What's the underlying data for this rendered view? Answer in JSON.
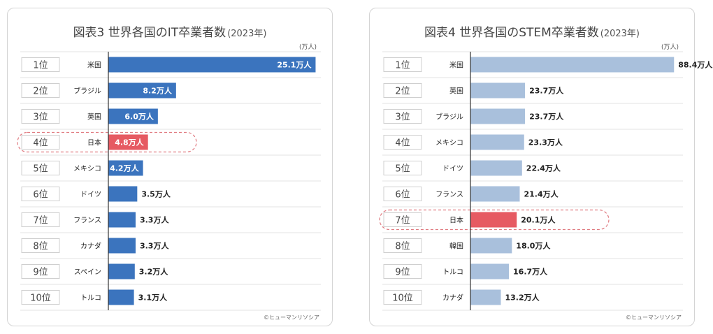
{
  "colors": {
    "bar": "#3b74be",
    "bar_light": "#a9c0dc",
    "highlight": "#e65a62",
    "highlight_border": "#e07a80"
  },
  "chart_data": [
    {
      "type": "bar",
      "orientation": "horizontal",
      "title": "図表3 世界各国のIT卒業者数",
      "title_year": "(2023年)",
      "unit": "(万人)",
      "source": "©ヒューマンリソシア",
      "ranks": [
        "1位",
        "2位",
        "3位",
        "4位",
        "5位",
        "6位",
        "7位",
        "8位",
        "9位",
        "10位"
      ],
      "categories": [
        "米国",
        "ブラジル",
        "英国",
        "日本",
        "メキシコ",
        "ドイツ",
        "フランス",
        "カナダ",
        "スペイン",
        "トルコ"
      ],
      "values": [
        25.1,
        8.2,
        6.0,
        4.8,
        4.2,
        3.5,
        3.3,
        3.3,
        3.2,
        3.1
      ],
      "labels": [
        "25.1万人",
        "8.2万人",
        "6.0万人",
        "4.8万人",
        "4.2万人",
        "3.5万人",
        "3.3万人",
        "3.3万人",
        "3.2万人",
        "3.1万人"
      ],
      "highlight_category": "日本",
      "xlim": [
        0,
        26.5
      ]
    },
    {
      "type": "bar",
      "orientation": "horizontal",
      "title": "図表4 世界各国のSTEM卒業者数",
      "title_year": "(2023年)",
      "unit": "(万人)",
      "source": "©ヒューマンリソシア",
      "ranks": [
        "1位",
        "2位",
        "3位",
        "4位",
        "5位",
        "6位",
        "7位",
        "8位",
        "9位",
        "10位"
      ],
      "categories": [
        "米国",
        "英国",
        "ブラジル",
        "メキシコ",
        "ドイツ",
        "フランス",
        "日本",
        "韓国",
        "トルコ",
        "カナダ"
      ],
      "values": [
        88.4,
        23.7,
        23.7,
        23.3,
        22.4,
        21.4,
        20.1,
        18.0,
        16.7,
        13.2
      ],
      "labels": [
        "88.4万人",
        "23.7万人",
        "23.7万人",
        "23.3万人",
        "22.4万人",
        "21.4万人",
        "20.1万人",
        "18.0万人",
        "16.7万人",
        "13.2万人"
      ],
      "highlight_category": "日本",
      "xlim": [
        0,
        95
      ]
    }
  ]
}
